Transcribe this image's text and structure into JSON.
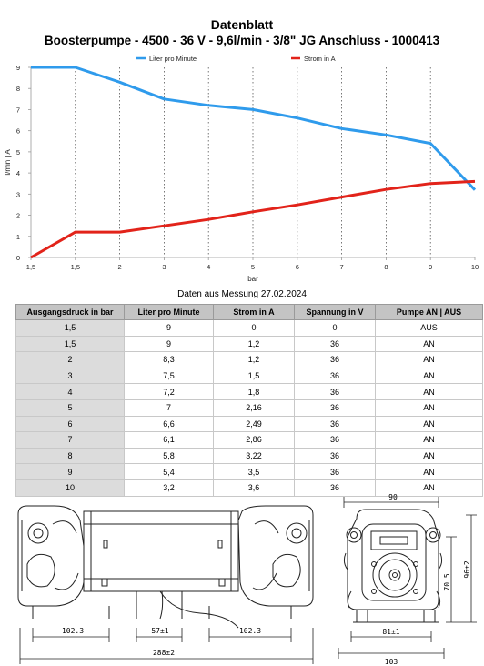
{
  "header": {
    "title": "Datenblatt",
    "subtitle": "Boosterpumpe - 4500 - 36 V - 9,6l/min - 3/8\" JG Anschluss - 1000413"
  },
  "chart_data": {
    "type": "line",
    "categories": [
      "1,5",
      "1,5",
      "2",
      "3",
      "4",
      "5",
      "6",
      "7",
      "8",
      "9",
      "10"
    ],
    "series": [
      {
        "name": "Liter pro Minute",
        "color": "#2f9bec",
        "values": [
          9,
          9,
          8.3,
          7.5,
          7.2,
          7,
          6.6,
          6.1,
          5.8,
          5.4,
          3.2
        ]
      },
      {
        "name": "Strom in A",
        "color": "#e2231a",
        "values": [
          0,
          1.2,
          1.2,
          1.5,
          1.8,
          2.16,
          2.49,
          2.86,
          3.22,
          3.5,
          3.6
        ]
      }
    ],
    "xlabel": "bar",
    "ylabel": "l/min | A",
    "ylim": [
      0,
      9
    ],
    "yticks": [
      "0",
      "1",
      "2",
      "3",
      "4",
      "5",
      "6",
      "7",
      "8",
      "9"
    ],
    "grid": "vertical dotted",
    "legend": "top"
  },
  "caption": "Daten aus Messung 27.02.2024",
  "table": {
    "headers": [
      "Ausgangsdruck in bar",
      "Liter pro Minute",
      "Strom in A",
      "Spannung in V",
      "Pumpe AN | AUS"
    ],
    "rows": [
      [
        "1,5",
        "9",
        "0",
        "0",
        "AUS"
      ],
      [
        "1,5",
        "9",
        "1,2",
        "36",
        "AN"
      ],
      [
        "2",
        "8,3",
        "1,2",
        "36",
        "AN"
      ],
      [
        "3",
        "7,5",
        "1,5",
        "36",
        "AN"
      ],
      [
        "4",
        "7,2",
        "1,8",
        "36",
        "AN"
      ],
      [
        "5",
        "7",
        "2,16",
        "36",
        "AN"
      ],
      [
        "6",
        "6,6",
        "2,49",
        "36",
        "AN"
      ],
      [
        "7",
        "6,1",
        "2,86",
        "36",
        "AN"
      ],
      [
        "8",
        "5,8",
        "3,22",
        "36",
        "AN"
      ],
      [
        "9",
        "5,4",
        "3,5",
        "36",
        "AN"
      ],
      [
        "10",
        "3,2",
        "3,6",
        "36",
        "AN"
      ]
    ]
  },
  "drawing": {
    "side": {
      "dim_left": "102.3",
      "dim_mid": "57±1",
      "dim_right": "102.3",
      "dim_total": "288±2"
    },
    "front": {
      "dim_top": "90",
      "dim_h1": "70.5",
      "dim_h2": "96±2",
      "dim_b1": "81±1",
      "dim_b2": "103"
    }
  }
}
